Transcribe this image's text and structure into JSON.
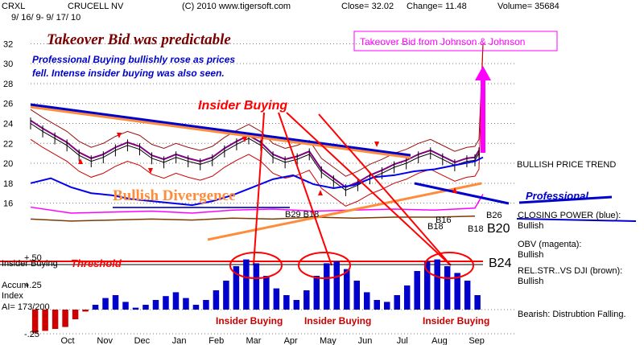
{
  "header": {
    "ticker": "CRXL",
    "company": "CRUCELL NV",
    "site": "(C) 2010 www.tigersoft.com",
    "close": "Close= 32.02",
    "change": "Change= 11.48",
    "volume": "Volume= 35684",
    "date_range": "9/ 16/ 9- 9/ 17/ 10"
  },
  "chart_data": {
    "type": "line",
    "y_ticks": [
      "32",
      "30",
      "28",
      "26",
      "24",
      "22",
      "20",
      "18",
      "16"
    ],
    "y_tick_values": [
      32,
      30,
      28,
      26,
      24,
      22,
      20,
      18,
      16
    ],
    "ylim": [
      15,
      33
    ],
    "x_tick_labels": [
      "Oct",
      "Nov",
      "Dec",
      "Jan",
      "Feb",
      "Mar",
      "Apr",
      "May",
      "Jun",
      "Jul",
      "Aug",
      "Sep"
    ],
    "price": {
      "name": "",
      "x": [
        0,
        0.3,
        0.6,
        0.9,
        1.2,
        1.5,
        1.8,
        2.1,
        2.4,
        2.7,
        3.0,
        3.3,
        3.6,
        3.9,
        4.2,
        4.5,
        4.8,
        5.1,
        5.4,
        5.7,
        6.0,
        6.3,
        6.6,
        6.9,
        7.2,
        7.5,
        7.8,
        8.1,
        8.4,
        8.7,
        9.0,
        9.3,
        9.6,
        9.9,
        10.2,
        10.5,
        10.8,
        11.0,
        11.1,
        11.2
      ],
      "values": [
        24,
        23.2,
        22.5,
        21.8,
        20.8,
        20.2,
        20.6,
        21.3,
        21.8,
        21.4,
        20.5,
        20.1,
        20.6,
        20.2,
        19.9,
        20.3,
        21.2,
        21.9,
        22.5,
        21.8,
        20.6,
        20.1,
        20.4,
        20.9,
        19.1,
        18.2,
        17.3,
        17.8,
        18.5,
        19.0,
        19.6,
        20.0,
        20.6,
        21.0,
        20.4,
        19.8,
        20.2,
        20.3,
        21.0,
        32.0
      ]
    },
    "closing_power": {
      "x": [
        0,
        0.5,
        1.0,
        1.5,
        2.0,
        2.5,
        3.0,
        3.5,
        4.0,
        4.5,
        5.0,
        5.5,
        6.0,
        6.5,
        7.0,
        7.5,
        8.0,
        8.5,
        9.0,
        9.5,
        10.0,
        10.5,
        11.0,
        11.2
      ],
      "values": [
        18.0,
        18.5,
        17.6,
        17.0,
        16.8,
        16.4,
        16.2,
        16.0,
        15.8,
        16.2,
        16.8,
        17.6,
        18.4,
        18.8,
        17.9,
        17.5,
        17.8,
        18.6,
        18.8,
        19.2,
        19.4,
        19.8,
        20.2,
        20.6
      ]
    },
    "obv": {
      "x": [
        0,
        1,
        2,
        3,
        4,
        5,
        6,
        7,
        8,
        9,
        10,
        11,
        11.2
      ],
      "values": [
        15.6,
        15.0,
        15.1,
        15.2,
        15.0,
        15.3,
        15.4,
        15.2,
        15.3,
        15.4,
        15.3,
        15.5,
        16.9
      ]
    },
    "relstr": {
      "x": [
        0,
        1,
        2,
        3,
        4,
        5,
        6,
        7,
        8,
        9,
        10,
        11
      ],
      "values": [
        14.4,
        14.2,
        14.3,
        14.4,
        14.3,
        14.5,
        14.4,
        14.6,
        14.5,
        14.6,
        14.6,
        14.7
      ]
    },
    "signals": [
      "B29 B18",
      "B18",
      "B16",
      "B18",
      "B26",
      "B20",
      "B24"
    ],
    "annotations": {
      "title": "Takeover Bid was predictable",
      "pro_line1": "Professional Buying bullishly rose as prices",
      "pro_line2": "fell.  Intense insider buying was also seen.",
      "insider_buying": "Insider Buying",
      "takeover_jnj": "Takeover Bid from Johnson & Johnson",
      "bullish_divergence": "Bullish Divergence",
      "bullish_price_trend": "BULLISH PRICE TREND",
      "professional": "Professional"
    },
    "legend": {
      "closing_power": "CLOSING POWER (blue):",
      "closing_power_value": "Bullish",
      "obv": "OBV (magenta):",
      "obv_value": "Bullish",
      "relstr": "REL.STR..VS DJI (brown):",
      "relstr_value": "Bullish",
      "bearish": "Bearish: Distrubtion Falling."
    },
    "indicator": {
      "label": "Insider Buying",
      "threshold_label": "Threshold",
      "accum": "Accum",
      "index": "Index",
      "ai_reading": "AI= 173/200",
      "plus50": "+.50",
      "plus25": "+.25",
      "minus25": "-.25",
      "threshold_value": 0.5,
      "bars": [
        -0.24,
        -0.22,
        -0.2,
        -0.18,
        -0.1,
        -0.02,
        0.05,
        0.12,
        0.15,
        0.08,
        0.02,
        0.05,
        0.1,
        0.14,
        0.18,
        0.12,
        0.05,
        0.1,
        0.2,
        0.3,
        0.45,
        0.52,
        0.48,
        0.35,
        0.22,
        0.15,
        0.1,
        0.2,
        0.35,
        0.48,
        0.5,
        0.42,
        0.3,
        0.18,
        0.1,
        0.08,
        0.15,
        0.25,
        0.4,
        0.5,
        0.52,
        0.45,
        0.38,
        0.3,
        0.15
      ]
    }
  }
}
